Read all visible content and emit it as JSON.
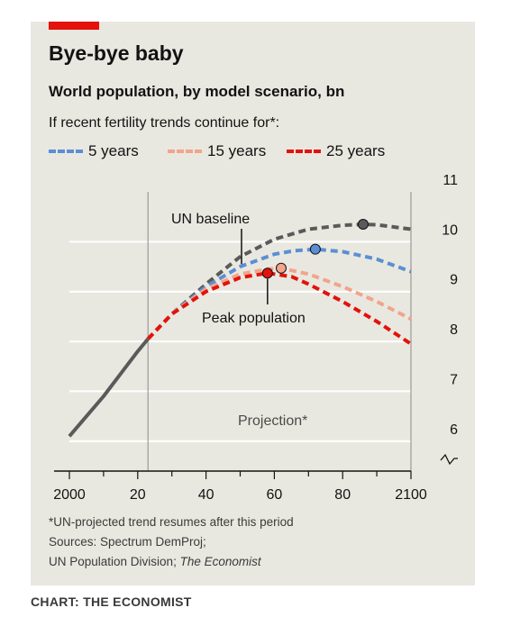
{
  "header": {
    "title": "Bye-bye baby",
    "subtitle": "World population, by model scenario, bn",
    "note": "If recent fertility trends continue for*:"
  },
  "legend": [
    {
      "label": "5 years",
      "color": "#5b8fd4"
    },
    {
      "label": "15 years",
      "color": "#f2a48c"
    },
    {
      "label": "25 years",
      "color": "#e3120b"
    }
  ],
  "annotations": {
    "un_baseline": "UN baseline",
    "peak_population": "Peak population",
    "projection": "Projection*"
  },
  "footer": {
    "footnote": "*UN-projected trend resumes after this period",
    "sources_1": "Sources: Spectrum DemProj;",
    "sources_2_prefix": "UN Population Division; ",
    "sources_2_italic": "The Economist",
    "credit": "CHART: THE ECONOMIST"
  },
  "chart_data": {
    "type": "line",
    "xlim": [
      2000,
      2100
    ],
    "ylim": [
      5.4,
      11
    ],
    "x_tick_labels": [
      "2000",
      "20",
      "40",
      "60",
      "80",
      "2100"
    ],
    "x_tick_values": [
      2000,
      2020,
      2040,
      2060,
      2080,
      2100
    ],
    "y_tick_labels": [
      "11",
      "10",
      "9",
      "8",
      "7",
      "6"
    ],
    "y_tick_values": [
      11,
      10,
      9,
      8,
      7,
      6
    ],
    "projection_start": 2023,
    "grid": true,
    "series": [
      {
        "key": "historical",
        "color": "#5a5a5a",
        "dashed": false,
        "points": [
          [
            2000,
            6.1
          ],
          [
            2005,
            6.5
          ],
          [
            2010,
            6.9
          ],
          [
            2015,
            7.35
          ],
          [
            2020,
            7.8
          ],
          [
            2023,
            8.05
          ]
        ]
      },
      {
        "key": "un_baseline",
        "color": "#5a5a5a",
        "dashed": true,
        "points": [
          [
            2023,
            8.05
          ],
          [
            2030,
            8.55
          ],
          [
            2040,
            9.15
          ],
          [
            2050,
            9.7
          ],
          [
            2060,
            10.05
          ],
          [
            2070,
            10.25
          ],
          [
            2080,
            10.33
          ],
          [
            2086,
            10.35
          ],
          [
            2090,
            10.34
          ],
          [
            2100,
            10.25
          ]
        ],
        "peak": [
          2086,
          10.35
        ]
      },
      {
        "key": "5_years",
        "color": "#5b8fd4",
        "dashed": true,
        "points": [
          [
            2023,
            8.05
          ],
          [
            2030,
            8.55
          ],
          [
            2040,
            9.1
          ],
          [
            2050,
            9.5
          ],
          [
            2060,
            9.75
          ],
          [
            2066,
            9.82
          ],
          [
            2072,
            9.85
          ],
          [
            2080,
            9.8
          ],
          [
            2090,
            9.65
          ],
          [
            2100,
            9.4
          ]
        ],
        "peak": [
          2072,
          9.85
        ]
      },
      {
        "key": "15_years",
        "color": "#f2a48c",
        "dashed": true,
        "points": [
          [
            2023,
            8.05
          ],
          [
            2030,
            8.55
          ],
          [
            2040,
            9.05
          ],
          [
            2050,
            9.35
          ],
          [
            2058,
            9.45
          ],
          [
            2062,
            9.47
          ],
          [
            2070,
            9.35
          ],
          [
            2080,
            9.1
          ],
          [
            2090,
            8.8
          ],
          [
            2100,
            8.45
          ]
        ],
        "peak": [
          2062,
          9.47
        ]
      },
      {
        "key": "25_years",
        "color": "#e3120b",
        "dashed": true,
        "points": [
          [
            2023,
            8.05
          ],
          [
            2030,
            8.55
          ],
          [
            2040,
            9.0
          ],
          [
            2050,
            9.28
          ],
          [
            2058,
            9.37
          ],
          [
            2065,
            9.3
          ],
          [
            2070,
            9.15
          ],
          [
            2080,
            8.8
          ],
          [
            2090,
            8.4
          ],
          [
            2100,
            7.95
          ]
        ],
        "peak": [
          2058,
          9.37
        ]
      }
    ]
  }
}
